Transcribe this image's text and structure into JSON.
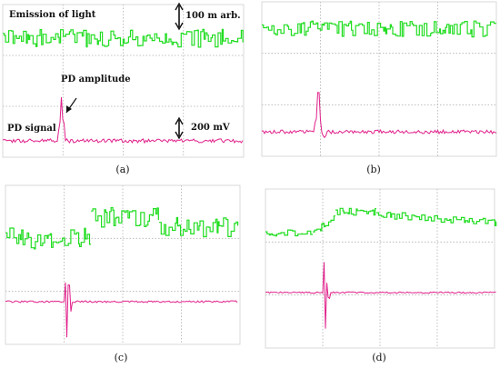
{
  "panels": [
    {
      "caption": "(a)",
      "annotations": {
        "emission": "Emission of light",
        "scale_light": "100  m  arb.",
        "pd_amplitude": "PD amplitude",
        "pd_signal": "PD signal",
        "scale_voltage": "200 mV"
      },
      "colors": {
        "light": "#22dd22",
        "pd": "#e0208a",
        "grid": "#b0b0b0"
      }
    },
    {
      "caption": "(b)"
    },
    {
      "caption": "(c)"
    },
    {
      "caption": "(d)"
    }
  ]
}
